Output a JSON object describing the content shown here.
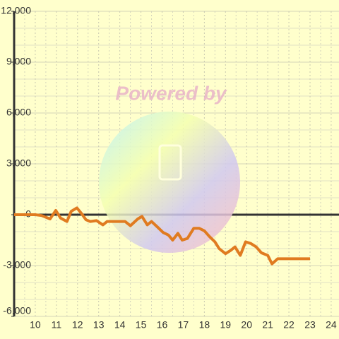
{
  "chart_data": {
    "type": "line",
    "watermark": "Powered by",
    "x": [
      9.0,
      10.0,
      10.3,
      10.7,
      10.97,
      11.2,
      11.5,
      11.7,
      11.97,
      12.2,
      12.4,
      12.6,
      12.9,
      13.2,
      13.4,
      13.65,
      13.98,
      14.25,
      14.5,
      14.85,
      15.05,
      15.3,
      15.5,
      15.8,
      16.05,
      16.3,
      16.5,
      16.75,
      16.95,
      17.2,
      17.5,
      17.75,
      18.0,
      18.25,
      18.5,
      18.7,
      19.0,
      19.25,
      19.45,
      19.7,
      19.95,
      20.2,
      20.45,
      20.7,
      21.0,
      21.2,
      21.47,
      21.87,
      23.0
    ],
    "series": [
      {
        "color": "#e07b20",
        "values": [
          0,
          0,
          -50,
          -250,
          250,
          -200,
          -400,
          200,
          400,
          50,
          -300,
          -400,
          -350,
          -600,
          -400,
          -400,
          -400,
          -400,
          -650,
          -250,
          -100,
          -600,
          -400,
          -750,
          -1050,
          -1200,
          -1500,
          -1100,
          -1500,
          -1400,
          -800,
          -800,
          -950,
          -1300,
          -1600,
          -2000,
          -2300,
          -2100,
          -1900,
          -2400,
          -1600,
          -1700,
          -1900,
          -2250,
          -2400,
          -2900,
          -2600,
          -2600,
          -2600
        ]
      }
    ],
    "xlim": [
      9,
      24.37
    ],
    "xticks": [
      10,
      11,
      12,
      13,
      14,
      15,
      16,
      17,
      18,
      19,
      20,
      21,
      22,
      23,
      24
    ],
    "ylim": [
      -6000,
      12000
    ],
    "yticks": [
      {
        "value": -6000,
        "label": "-6,000"
      },
      {
        "value": -3000,
        "label": "-3,000"
      },
      0,
      {
        "value": 3000,
        "label": "3,000"
      },
      {
        "value": 6000,
        "label": "6,000"
      },
      {
        "value": 9000,
        "label": "9,000"
      },
      {
        "value": 12000,
        "label": "12,000"
      }
    ],
    "grid": true
  }
}
